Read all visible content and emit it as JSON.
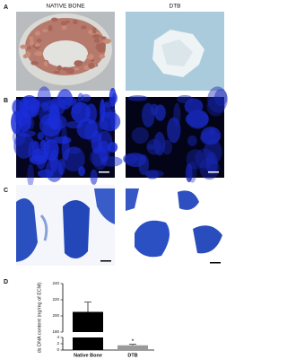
{
  "figure": {
    "panel_labels": [
      "A",
      "B",
      "C",
      "D"
    ],
    "image_labels": [
      "NATIVE BONE",
      "DTB"
    ]
  },
  "chart_data": {
    "type": "bar",
    "y_label": "ds DNA content (ng/mg of ECM)",
    "categories": [
      "Native Bone",
      "DTB"
    ],
    "values": [
      205,
      1.5
    ],
    "errors": [
      12,
      0.3
    ],
    "annotations": [
      {
        "category": 1,
        "text": "*"
      }
    ],
    "color": "#000000",
    "ylim": [
      0,
      240
    ],
    "axis_break": [
      4,
      180
    ],
    "yticks": [
      0,
      2,
      4,
      180,
      200,
      220,
      240
    ]
  }
}
